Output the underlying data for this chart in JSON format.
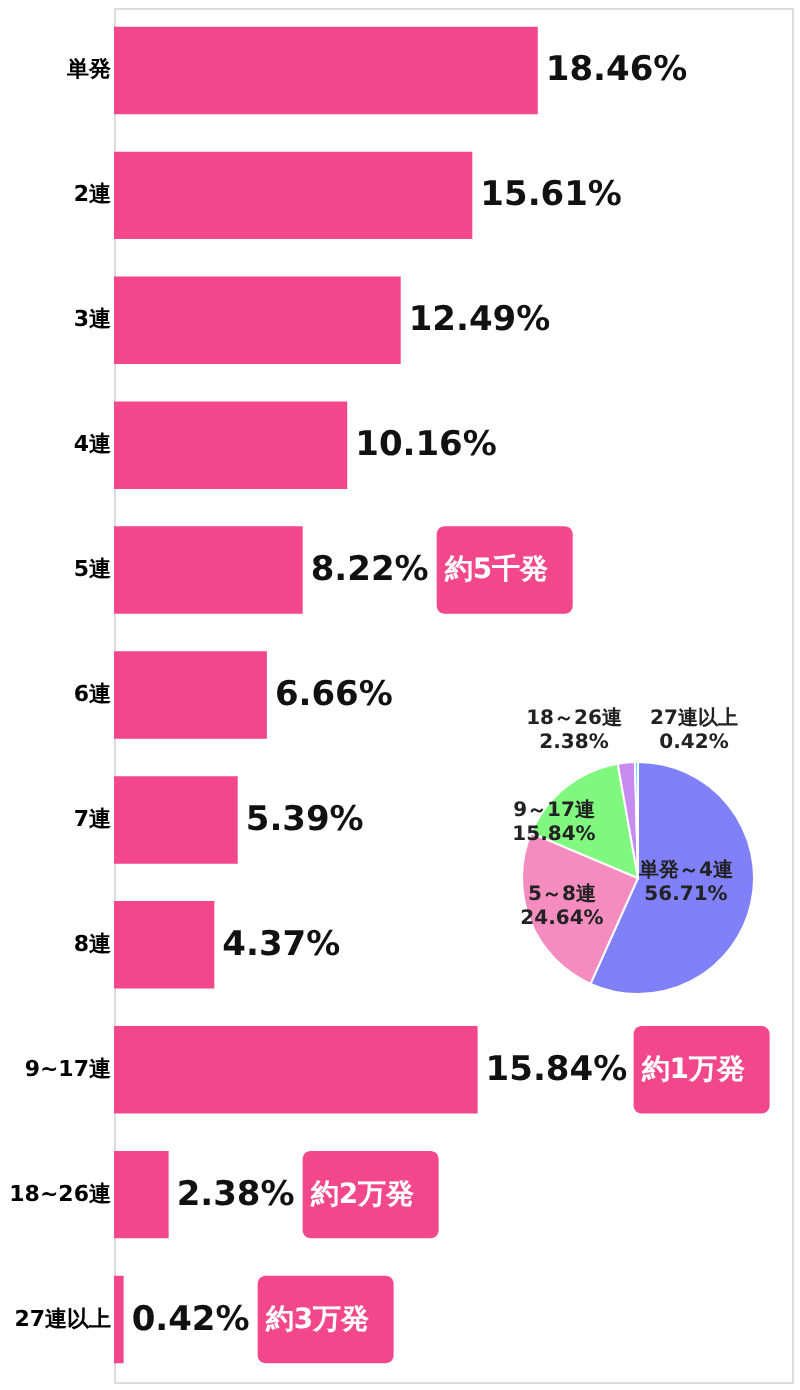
{
  "chart_data": [
    {
      "type": "bar",
      "orientation": "horizontal",
      "categories": [
        "単発",
        "2連",
        "3連",
        "4連",
        "5連",
        "6連",
        "7連",
        "8連",
        "9~17連",
        "18~26連",
        "27連以上"
      ],
      "values": [
        18.46,
        15.61,
        12.49,
        10.16,
        8.22,
        6.66,
        5.39,
        4.37,
        15.84,
        2.38,
        0.42
      ],
      "value_labels": [
        "18.46%",
        "15.61%",
        "12.49%",
        "10.16%",
        "8.22%",
        "6.66%",
        "5.39%",
        "4.37%",
        "15.84%",
        "2.38%",
        "0.42%"
      ],
      "color": "#f2478a",
      "tick_labels": "y",
      "annotations": [
        "約5千発",
        "約1万発",
        "約2万発",
        "約3万発"
      ]
    },
    {
      "type": "pie",
      "categories": [
        "単発～4連",
        "5～8連",
        "9～17連",
        "18～26連",
        "27連以上"
      ],
      "values": [
        56.71,
        24.64,
        15.84,
        2.38,
        0.42
      ],
      "value_labels": [
        "56.71%",
        "24.64%",
        "15.84%",
        "2.38%",
        "0.42%"
      ],
      "colors": [
        "#8080f8",
        "#f58cc0",
        "#80f880",
        "#c88cf0",
        "#40d8f8"
      ]
    }
  ]
}
